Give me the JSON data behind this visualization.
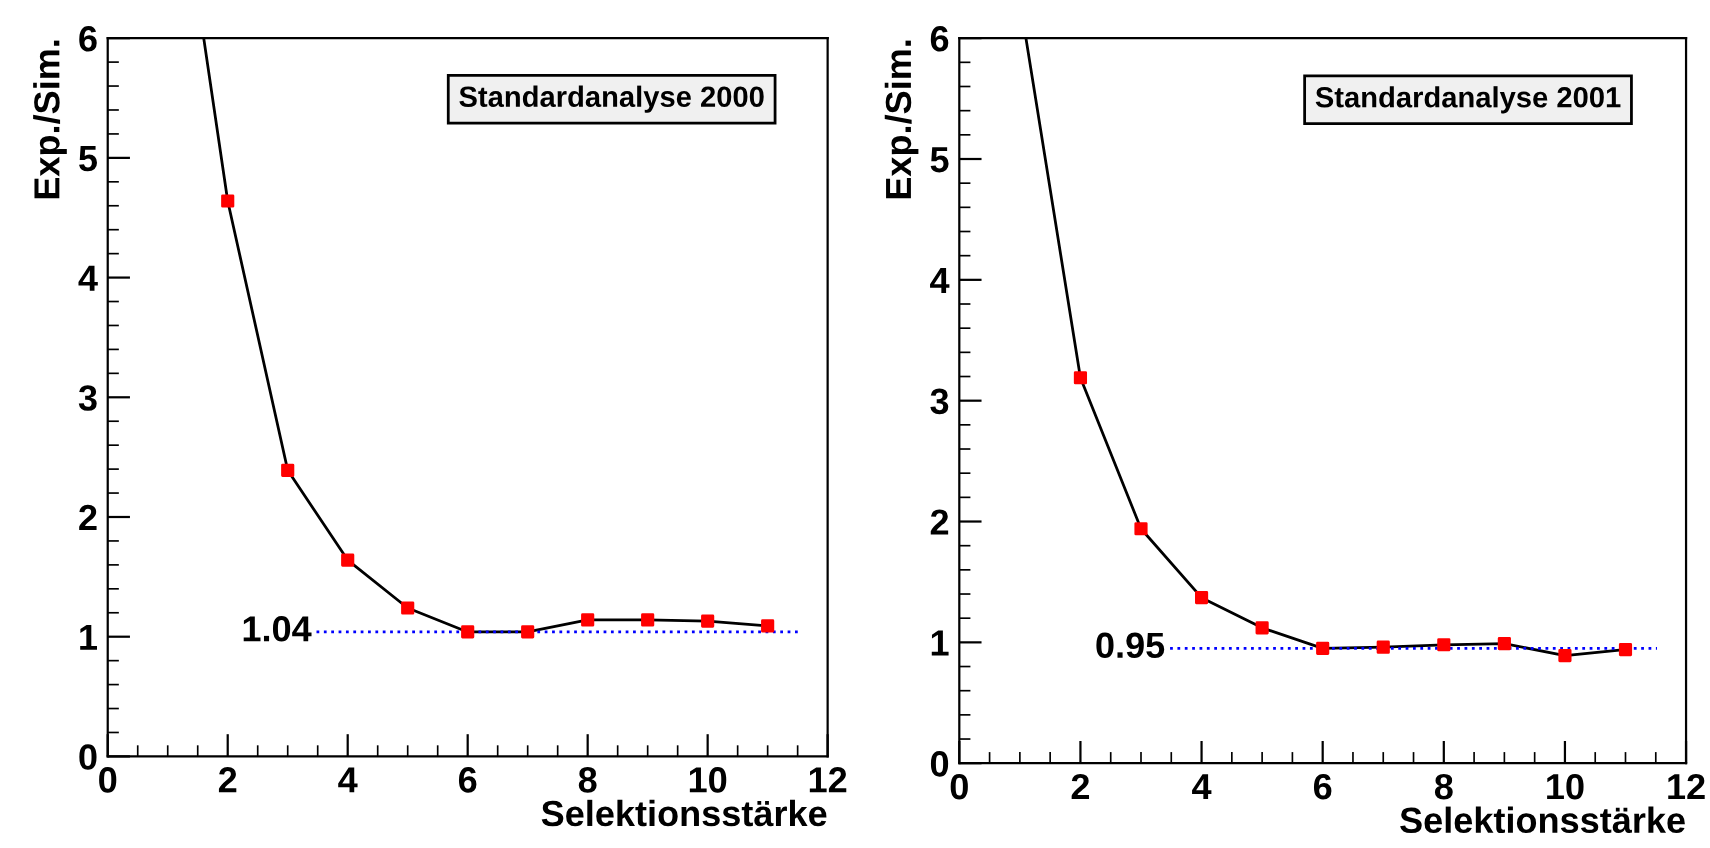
{
  "chart_data": [
    {
      "type": "line",
      "title": "Standardanalyse 2000",
      "xlabel": "Selektionsstärke",
      "ylabel": "Exp./Sim.",
      "xlim": [
        0,
        12
      ],
      "ylim": [
        0,
        6
      ],
      "xticks": [
        0,
        2,
        4,
        6,
        8,
        10,
        12
      ],
      "yticks": [
        0,
        1,
        2,
        3,
        4,
        5,
        6
      ],
      "grid": false,
      "legend": false,
      "series": [
        {
          "color": "#000000",
          "marker": "none",
          "x": [
            1.6,
            2,
            3,
            4,
            5,
            6,
            7,
            8,
            9,
            10,
            11
          ],
          "values": [
            6,
            4.64,
            2.39,
            1.64,
            1.24,
            1.04,
            1.04,
            1.14,
            1.14,
            1.13,
            1.09
          ]
        },
        {
          "type": "scatter",
          "color": "#ff0000",
          "marker": "square",
          "x": [
            2,
            3,
            4,
            5,
            6,
            7,
            8,
            9,
            10,
            11
          ],
          "values": [
            4.64,
            2.39,
            1.64,
            1.24,
            1.04,
            1.04,
            1.14,
            1.14,
            1.13,
            1.09
          ]
        }
      ],
      "ref_lines": [
        {
          "axis": "y",
          "value": 1.04,
          "label": "1.04",
          "color": "#0000ff",
          "line_style": "dotted"
        }
      ]
    },
    {
      "type": "line",
      "title": "Standardanalyse 2001",
      "xlabel": "Selektionsstärke",
      "ylabel": "Exp./Sim.",
      "xlim": [
        0,
        12
      ],
      "ylim": [
        0,
        6
      ],
      "xticks": [
        0,
        2,
        4,
        6,
        8,
        10,
        12
      ],
      "yticks": [
        0,
        1,
        2,
        3,
        4,
        5,
        6
      ],
      "grid": false,
      "legend": false,
      "series": [
        {
          "color": "#000000",
          "marker": "none",
          "x": [
            1.1,
            2,
            3,
            4,
            5,
            6,
            7,
            8,
            9,
            10,
            11
          ],
          "values": [
            6,
            3.19,
            1.94,
            1.37,
            1.12,
            0.95,
            0.96,
            0.98,
            0.99,
            0.89,
            0.94
          ]
        },
        {
          "type": "scatter",
          "color": "#ff0000",
          "marker": "square",
          "x": [
            2,
            3,
            4,
            5,
            6,
            7,
            8,
            9,
            10,
            11
          ],
          "values": [
            3.19,
            1.94,
            1.37,
            1.12,
            0.95,
            0.96,
            0.98,
            0.99,
            0.89,
            0.94
          ]
        }
      ],
      "ref_lines": [
        {
          "axis": "y",
          "value": 0.95,
          "label": "0.95",
          "color": "#0000ff",
          "line_style": "dotted"
        }
      ]
    }
  ]
}
